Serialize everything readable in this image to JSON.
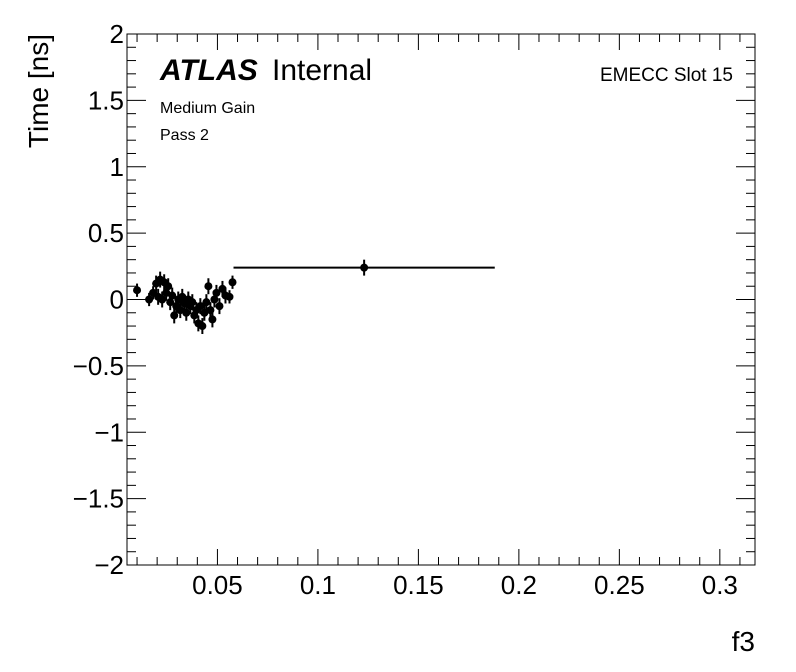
{
  "chart_data": {
    "type": "scatter",
    "xlabel": "f3",
    "ylabel": "Time [ns]",
    "xlim": [
      0.005,
      0.3175
    ],
    "ylim": [
      -2,
      2
    ],
    "x_ticks": [
      0.05,
      0.1,
      0.15,
      0.2,
      0.25,
      0.3
    ],
    "x_tick_labels": [
      "0.05",
      "0.1",
      "0.15",
      "0.2",
      "0.25",
      "0.3"
    ],
    "y_ticks": [
      -2,
      -1.5,
      -1,
      -0.5,
      0,
      0.5,
      1,
      1.5,
      2
    ],
    "y_tick_labels": [
      "−2",
      "−1.5",
      "−1",
      "−0.5",
      "0",
      "0.5",
      "1",
      "1.5",
      "2"
    ],
    "grid": false,
    "annotations": {
      "atlas": "ATLAS",
      "atlas_status": "Internal",
      "gain": "Medium Gain",
      "pass": "Pass 2",
      "slot": "EMECC Slot 15"
    },
    "points": [
      {
        "x": 0.01,
        "y": 0.07,
        "xerr": 0.0015,
        "yerr": 0.05
      },
      {
        "x": 0.016,
        "y": 0.0,
        "xerr": 0.0008,
        "yerr": 0.05
      },
      {
        "x": 0.018,
        "y": 0.05,
        "xerr": 0.0008,
        "yerr": 0.05
      },
      {
        "x": 0.0195,
        "y": 0.12,
        "xerr": 0.0006,
        "yerr": 0.06
      },
      {
        "x": 0.0205,
        "y": 0.02,
        "xerr": 0.0006,
        "yerr": 0.06
      },
      {
        "x": 0.0215,
        "y": 0.15,
        "xerr": 0.0006,
        "yerr": 0.06
      },
      {
        "x": 0.0225,
        "y": 0.0,
        "xerr": 0.0006,
        "yerr": 0.06
      },
      {
        "x": 0.0235,
        "y": 0.13,
        "xerr": 0.0006,
        "yerr": 0.06
      },
      {
        "x": 0.0245,
        "y": 0.05,
        "xerr": 0.0006,
        "yerr": 0.06
      },
      {
        "x": 0.0255,
        "y": 0.1,
        "xerr": 0.0006,
        "yerr": 0.06
      },
      {
        "x": 0.0265,
        "y": -0.02,
        "xerr": 0.0006,
        "yerr": 0.06
      },
      {
        "x": 0.0275,
        "y": 0.03,
        "xerr": 0.0006,
        "yerr": 0.06
      },
      {
        "x": 0.0285,
        "y": -0.12,
        "xerr": 0.0006,
        "yerr": 0.06
      },
      {
        "x": 0.0295,
        "y": -0.05,
        "xerr": 0.0006,
        "yerr": 0.06
      },
      {
        "x": 0.0305,
        "y": 0.0,
        "xerr": 0.0006,
        "yerr": 0.06
      },
      {
        "x": 0.0315,
        "y": -0.08,
        "xerr": 0.0006,
        "yerr": 0.06
      },
      {
        "x": 0.0325,
        "y": 0.02,
        "xerr": 0.0006,
        "yerr": 0.06
      },
      {
        "x": 0.0335,
        "y": -0.03,
        "xerr": 0.0006,
        "yerr": 0.06
      },
      {
        "x": 0.0345,
        "y": -0.1,
        "xerr": 0.0006,
        "yerr": 0.06
      },
      {
        "x": 0.0355,
        "y": 0.0,
        "xerr": 0.0006,
        "yerr": 0.06
      },
      {
        "x": 0.0365,
        "y": -0.05,
        "xerr": 0.0006,
        "yerr": 0.06
      },
      {
        "x": 0.0375,
        "y": -0.02,
        "xerr": 0.0006,
        "yerr": 0.06
      },
      {
        "x": 0.0385,
        "y": -0.12,
        "xerr": 0.0006,
        "yerr": 0.06
      },
      {
        "x": 0.0395,
        "y": -0.08,
        "xerr": 0.0006,
        "yerr": 0.06
      },
      {
        "x": 0.0405,
        "y": -0.18,
        "xerr": 0.0006,
        "yerr": 0.06
      },
      {
        "x": 0.0415,
        "y": -0.05,
        "xerr": 0.0006,
        "yerr": 0.06
      },
      {
        "x": 0.0425,
        "y": -0.2,
        "xerr": 0.0006,
        "yerr": 0.06
      },
      {
        "x": 0.0435,
        "y": -0.1,
        "xerr": 0.0006,
        "yerr": 0.06
      },
      {
        "x": 0.0445,
        "y": -0.02,
        "xerr": 0.0006,
        "yerr": 0.06
      },
      {
        "x": 0.0455,
        "y": 0.1,
        "xerr": 0.0006,
        "yerr": 0.06
      },
      {
        "x": 0.0465,
        "y": -0.08,
        "xerr": 0.0006,
        "yerr": 0.06
      },
      {
        "x": 0.0475,
        "y": -0.15,
        "xerr": 0.0006,
        "yerr": 0.06
      },
      {
        "x": 0.0485,
        "y": 0.0,
        "xerr": 0.0006,
        "yerr": 0.06
      },
      {
        "x": 0.0495,
        "y": 0.05,
        "xerr": 0.0006,
        "yerr": 0.06
      },
      {
        "x": 0.051,
        "y": -0.05,
        "xerr": 0.0006,
        "yerr": 0.06
      },
      {
        "x": 0.0525,
        "y": 0.08,
        "xerr": 0.0006,
        "yerr": 0.06
      },
      {
        "x": 0.054,
        "y": 0.03,
        "xerr": 0.0006,
        "yerr": 0.06
      },
      {
        "x": 0.056,
        "y": 0.02,
        "xerr": 0.0008,
        "yerr": 0.05
      },
      {
        "x": 0.0575,
        "y": 0.13,
        "xerr": 0.0008,
        "yerr": 0.05
      },
      {
        "x": 0.123,
        "y": 0.24,
        "xerr": 0.065,
        "yerr": 0.06
      }
    ]
  }
}
